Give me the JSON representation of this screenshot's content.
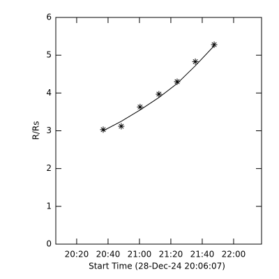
{
  "chart_data": {
    "type": "scatter",
    "xlabel": "Start Time (28-Dec-24 20:06:07)",
    "ylabel": "R/Rs",
    "xlim": [
      1206.7,
      1337.8
    ],
    "ylim": [
      0,
      6
    ],
    "xticks": [
      {
        "value": 1220,
        "label": "20:20"
      },
      {
        "value": 1240,
        "label": "20:40"
      },
      {
        "value": 1260,
        "label": "21:00"
      },
      {
        "value": 1280,
        "label": "21:20"
      },
      {
        "value": 1300,
        "label": "21:40"
      },
      {
        "value": 1320,
        "label": "22:00"
      }
    ],
    "yticks": [
      0,
      1,
      2,
      3,
      4,
      5,
      6
    ],
    "color": "#000000",
    "series": [
      {
        "style": "markers",
        "x": [
          1236.9,
          1248.4,
          1260.4,
          1272.4,
          1284.0,
          1295.6,
          1307.6
        ],
        "values": [
          3.03,
          3.12,
          3.63,
          3.97,
          4.3,
          4.83,
          5.28
        ]
      },
      {
        "style": "line",
        "x": [
          1236.9,
          1248.4,
          1260.4,
          1272.4,
          1284.0,
          1295.6,
          1307.6
        ],
        "values": [
          3.0,
          3.25,
          3.55,
          3.88,
          4.25,
          4.72,
          5.25
        ]
      }
    ]
  }
}
